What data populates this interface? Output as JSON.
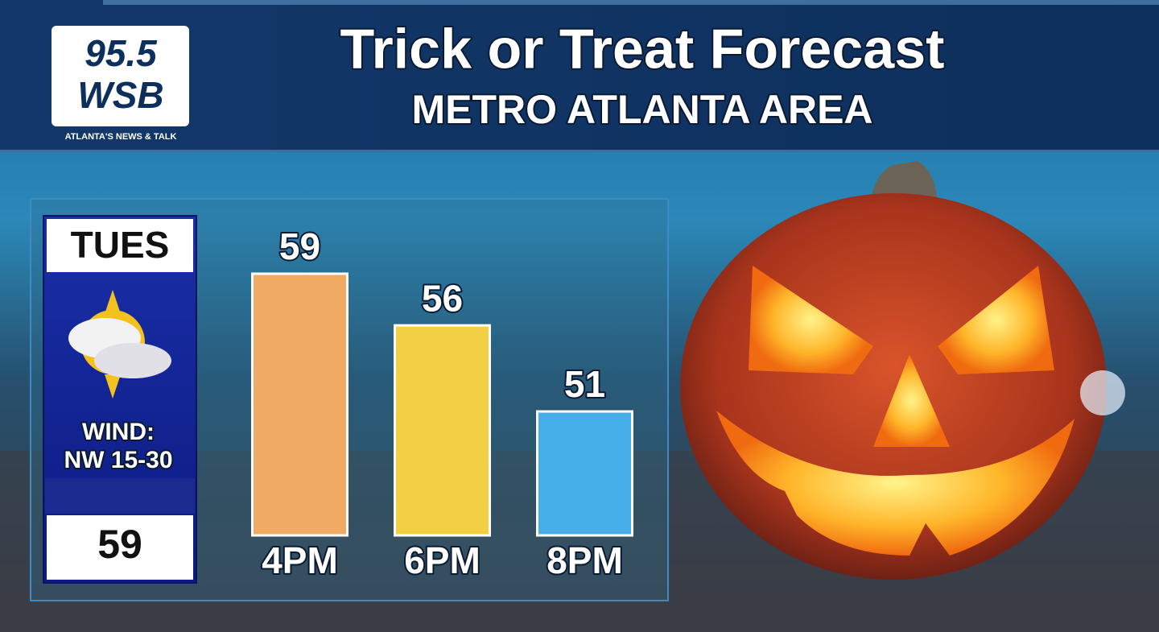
{
  "header": {
    "logo_number": "95.5",
    "logo_name": "WSB",
    "logo_tagline": "ATLANTA'S NEWS & TALK"
  },
  "panel": {
    "day": "TUES",
    "wind_label": "WIND:",
    "wind": "NW 15-30",
    "high": "59"
  },
  "chart_data": {
    "type": "bar",
    "title": "Trick or Treat Forecast",
    "subtitle": "METRO  ATLANTA  AREA",
    "categories": [
      "4PM",
      "6PM",
      "8PM"
    ],
    "values": [
      59,
      56,
      51
    ],
    "colors": [
      "#f0aa64",
      "#f3cf45",
      "#46aee8"
    ]
  }
}
